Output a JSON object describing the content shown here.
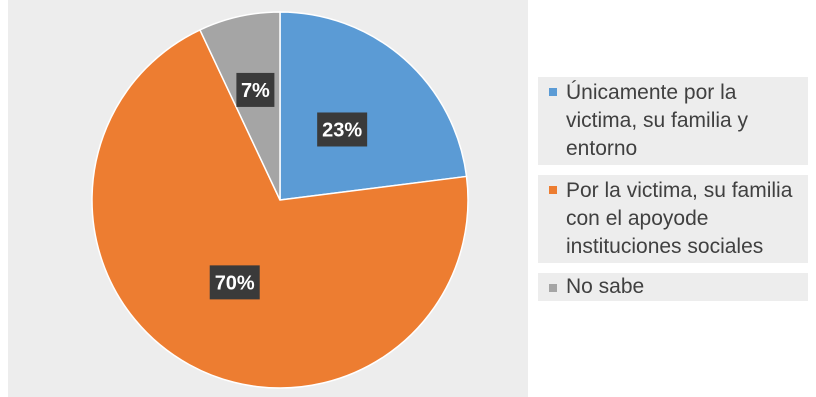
{
  "chart_data": {
    "type": "pie",
    "title": "",
    "slices": [
      {
        "label": "Únicamente por la victima, su familia y entorno",
        "value": 23,
        "display": "23%",
        "color": "#5b9bd5"
      },
      {
        "label": "Por la victima, su familia con el apoyode instituciones sociales",
        "value": 70,
        "display": "70%",
        "color": "#ed7d31"
      },
      {
        "label": "No sabe",
        "value": 7,
        "display": "7%",
        "color": "#a5a5a5"
      }
    ],
    "start_angle": "12 o'clock",
    "direction": "clockwise",
    "legend_position": "right",
    "data_label_style": "dark box, white bold text"
  },
  "legend": {
    "items": [
      {
        "label": "Únicamente por la victima, su familia y entorno",
        "color": "#5b9bd5"
      },
      {
        "label": "Por la victima, su familia con el apoyode instituciones sociales",
        "color": "#ed7d31"
      },
      {
        "label": "No sabe",
        "color": "#a5a5a5"
      }
    ]
  },
  "colors": {
    "label_box": "#3a3a3a",
    "label_text": "#ffffff",
    "background": "#ededed"
  }
}
